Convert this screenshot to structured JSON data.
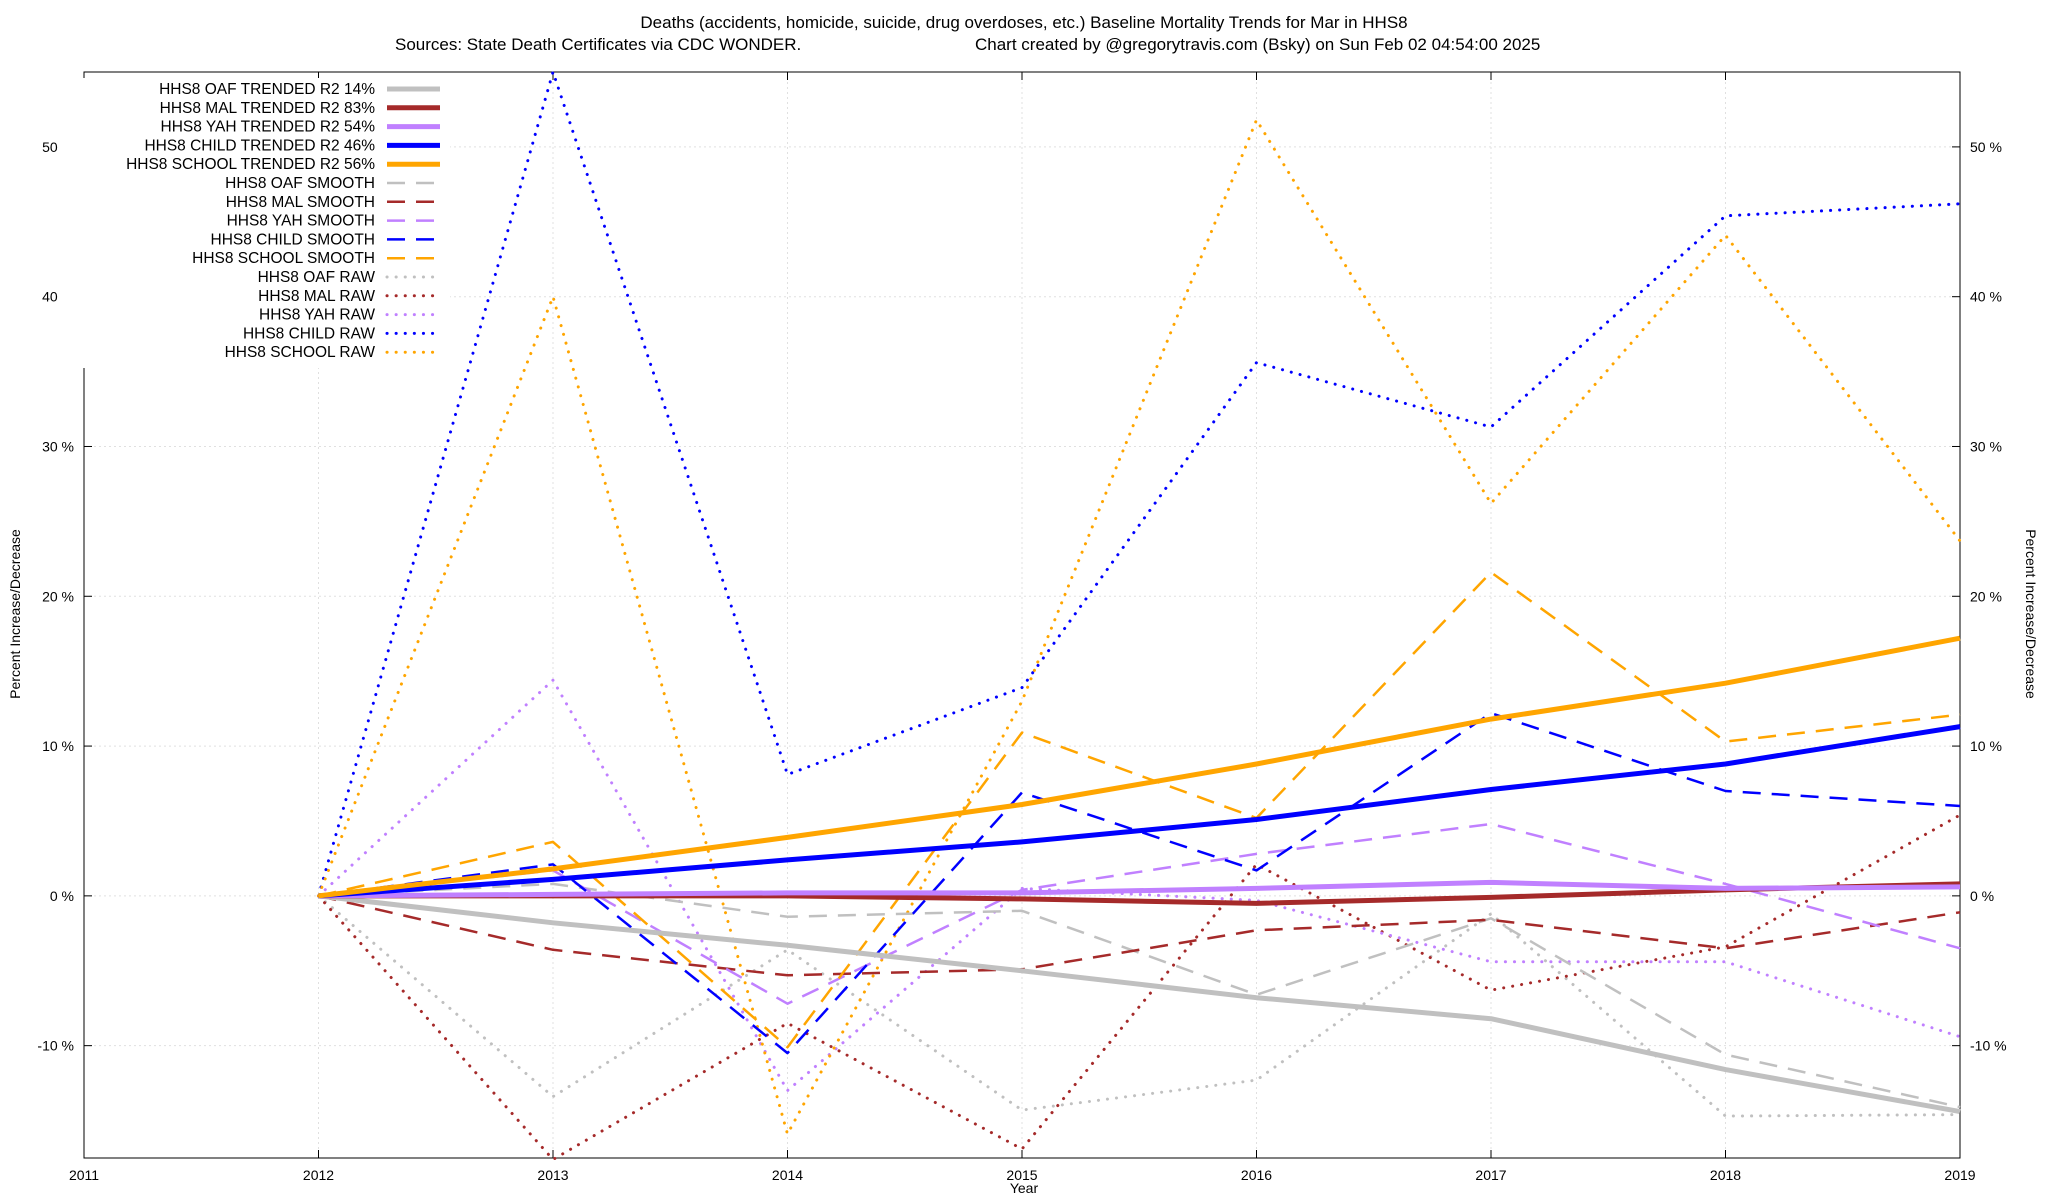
{
  "chart_data": {
    "type": "line",
    "title": "Deaths (accidents, homicide, suicide, drug overdoses, etc.)  Baseline Mortality Trends for Mar in HHS8",
    "subtitle_left": "Sources: State Death Certificates via CDC WONDER.",
    "subtitle_right": "Chart created by @gregorytravis.com (Bsky) on Sun Feb 02 04:54:00 2025",
    "xlabel": "Year",
    "ylabel_left": "Percent Increase/Decrease",
    "ylabel_right": "Percent Increase/Decrease",
    "xlim": [
      2011,
      2019
    ],
    "ylim": [
      -17.5,
      55
    ],
    "x_ticks": [
      "2011",
      "2012",
      "2013",
      "2014",
      "2015",
      "2016",
      "2017",
      "2018",
      "2019"
    ],
    "y_ticks": [
      {
        "value": -10,
        "label": "-10 %"
      },
      {
        "value": 0,
        "label": "0 %"
      },
      {
        "value": 10,
        "label": "10 %"
      },
      {
        "value": 20,
        "label": "20 %"
      },
      {
        "value": 30,
        "label": "30 %"
      },
      {
        "value": 40,
        "label": "40 %"
      },
      {
        "value": 50,
        "label": "50 %"
      }
    ],
    "grid": true,
    "legend_position": "top-left",
    "x": [
      2012,
      2013,
      2014,
      2015,
      2016,
      2017,
      2018,
      2019
    ],
    "series": [
      {
        "name": "HHS8 OAF TRENDED R2  14%",
        "style": "trend",
        "color": "#c0c0c0",
        "values": [
          0,
          -1.8,
          -3.3,
          -5.0,
          -6.8,
          -8.2,
          -11.6,
          -14.4
        ]
      },
      {
        "name": "HHS8 MAL TRENDED R2  83%",
        "style": "trend",
        "color": "#a52a2a",
        "values": [
          0,
          0.0,
          0.0,
          -0.2,
          -0.5,
          -0.1,
          0.4,
          0.8
        ]
      },
      {
        "name": "HHS8 YAH TRENDED R2  54%",
        "style": "trend",
        "color": "#c080ff",
        "values": [
          0,
          0.1,
          0.2,
          0.2,
          0.5,
          0.9,
          0.5,
          0.6
        ]
      },
      {
        "name": "HHS8 CHILD TRENDED R2  46%",
        "style": "trend",
        "color": "#0000ff",
        "values": [
          0,
          1.1,
          2.4,
          3.6,
          5.1,
          7.1,
          8.8,
          11.3
        ]
      },
      {
        "name": "HHS8 SCHOOL TRENDED R2  56%",
        "style": "trend",
        "color": "#ffa500",
        "values": [
          0,
          1.8,
          3.9,
          6.1,
          8.8,
          11.8,
          14.2,
          17.2
        ]
      },
      {
        "name": "HHS8 OAF SMOOTH",
        "style": "smooth",
        "color": "#c0c0c0",
        "values": [
          0,
          0.8,
          -1.4,
          -1.0,
          -6.6,
          -1.5,
          -10.6,
          -14.1
        ]
      },
      {
        "name": "HHS8 MAL SMOOTH",
        "style": "smooth",
        "color": "#a52a2a",
        "values": [
          0,
          -3.6,
          -5.3,
          -4.9,
          -2.3,
          -1.6,
          -3.5,
          -1.1
        ]
      },
      {
        "name": "HHS8 YAH SMOOTH",
        "style": "smooth",
        "color": "#c080ff",
        "values": [
          0,
          1.7,
          -7.2,
          0.4,
          2.8,
          4.8,
          0.8,
          -3.5
        ]
      },
      {
        "name": "HHS8 CHILD SMOOTH",
        "style": "smooth",
        "color": "#0000ff",
        "values": [
          0,
          2.1,
          -10.5,
          6.9,
          1.7,
          12.2,
          7.0,
          6.0
        ]
      },
      {
        "name": "HHS8 SCHOOL SMOOTH",
        "style": "smooth",
        "color": "#ffa500",
        "values": [
          0,
          3.6,
          -10.1,
          10.9,
          5.2,
          21.6,
          10.3,
          12.1
        ]
      },
      {
        "name": "HHS8 OAF RAW",
        "style": "raw",
        "color": "#c0c0c0",
        "values": [
          0,
          -13.4,
          -3.6,
          -14.3,
          -12.3,
          -1.2,
          -14.7,
          -14.6
        ]
      },
      {
        "name": "HHS8 MAL RAW",
        "style": "raw",
        "color": "#a52a2a",
        "values": [
          0,
          -17.6,
          -8.5,
          -16.9,
          2.1,
          -6.3,
          -3.4,
          5.4
        ]
      },
      {
        "name": "HHS8 YAH RAW",
        "style": "raw",
        "color": "#c080ff",
        "values": [
          0,
          14.4,
          -13.0,
          0.5,
          -0.3,
          -4.4,
          -4.4,
          -9.4
        ]
      },
      {
        "name": "HHS8 CHILD RAW",
        "style": "raw",
        "color": "#0000ff",
        "values": [
          0,
          55.0,
          8.1,
          13.9,
          35.6,
          31.3,
          45.4,
          46.2
        ]
      },
      {
        "name": "HHS8 SCHOOL RAW",
        "style": "raw",
        "color": "#ffa500",
        "values": [
          0,
          40.0,
          -15.9,
          13.0,
          51.8,
          26.2,
          44.1,
          23.7
        ]
      }
    ]
  }
}
